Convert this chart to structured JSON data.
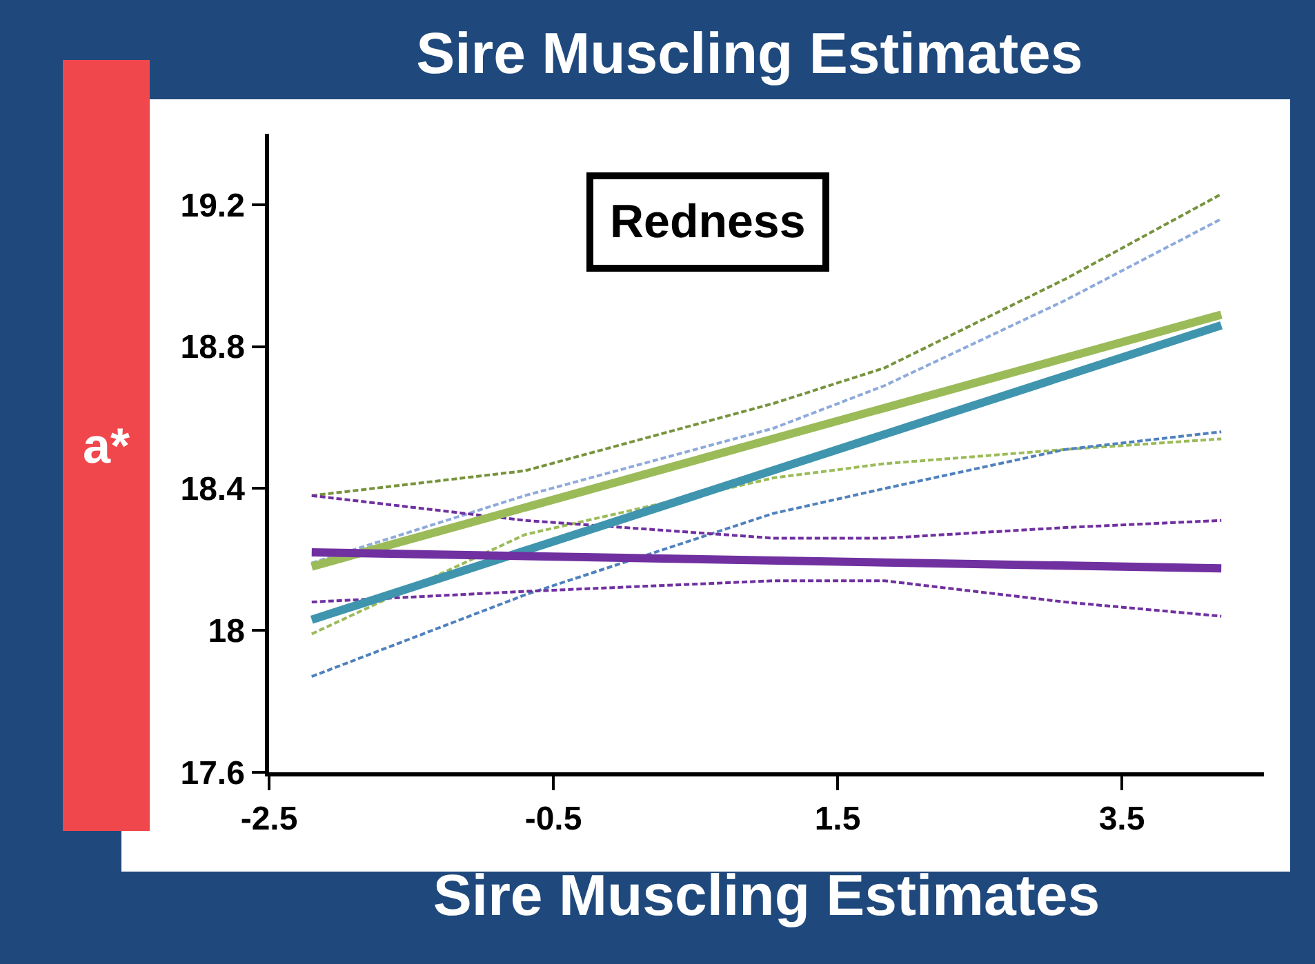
{
  "chart_data": {
    "type": "line",
    "title": "Sire Muscling Estimates",
    "xlabel": "Sire Muscling Estimates",
    "ylabel": "a*",
    "annotations": [
      "Redness"
    ],
    "xlim": [
      -2.5,
      4.5
    ],
    "xticks": [
      -2.5,
      -0.5,
      1.5,
      3.5
    ],
    "ylim": [
      17.6,
      19.4
    ],
    "yticks": [
      17.6,
      18,
      18.4,
      18.8,
      19.2
    ],
    "marker": "none",
    "series": [
      {
        "color": "#77933c",
        "line_style": "dashed",
        "x": [
          -2.2,
          -0.7,
          1.05,
          1.83,
          3.1,
          4.2
        ],
        "values": [
          18.38,
          18.45,
          18.64,
          18.74,
          18.99,
          19.23
        ]
      },
      {
        "color": "#9bbb59",
        "line_style": "dashed",
        "x": [
          -2.2,
          -0.7,
          1.05,
          1.83,
          3.1,
          4.2
        ],
        "values": [
          17.99,
          18.27,
          18.43,
          18.47,
          18.51,
          18.54
        ]
      },
      {
        "color": "#8eaadb",
        "line_style": "dashed",
        "x": [
          -2.2,
          -0.7,
          1.05,
          1.83,
          3.1,
          4.2
        ],
        "values": [
          18.19,
          18.38,
          18.57,
          18.69,
          18.93,
          19.16
        ]
      },
      {
        "color": "#4f81bd",
        "line_style": "dashed",
        "x": [
          -2.2,
          -0.7,
          1.05,
          1.83,
          3.1,
          4.2
        ],
        "values": [
          17.87,
          18.1,
          18.33,
          18.4,
          18.51,
          18.56
        ]
      },
      {
        "color": "#7030a0",
        "line_style": "dashed",
        "x": [
          -2.2,
          -0.7,
          1.05,
          1.83,
          3.1,
          4.2
        ],
        "values": [
          18.38,
          18.31,
          18.26,
          18.26,
          18.29,
          18.31
        ]
      },
      {
        "color": "#7030a0",
        "line_style": "dashed",
        "x": [
          -2.2,
          -0.7,
          1.05,
          1.83,
          3.1,
          4.2
        ],
        "values": [
          18.08,
          18.11,
          18.14,
          18.14,
          18.08,
          18.04
        ]
      },
      {
        "color": "#9bbb59",
        "line_style": "solid",
        "x": [
          -2.2,
          4.2
        ],
        "values": [
          18.18,
          18.89
        ]
      },
      {
        "color": "#4095ae",
        "line_style": "solid",
        "x": [
          -2.2,
          4.2
        ],
        "values": [
          18.03,
          18.86
        ]
      },
      {
        "color": "#7030a0",
        "line_style": "solid",
        "x": [
          -2.2,
          4.2
        ],
        "values": [
          18.22,
          18.175
        ]
      }
    ]
  }
}
